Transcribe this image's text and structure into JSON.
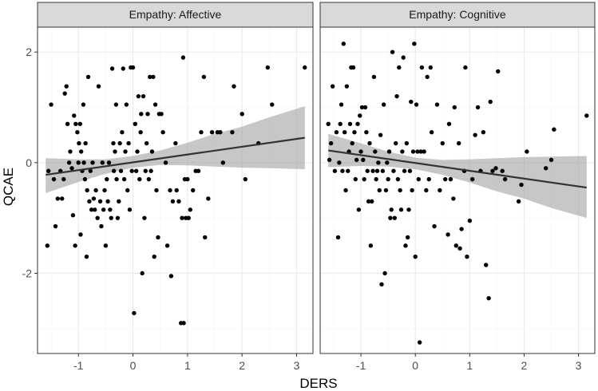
{
  "chart_data": {
    "type": "scatter",
    "xlabel": "DERS",
    "ylabel": "QCAE",
    "xlim": [
      -1.75,
      3.3
    ],
    "ylim": [
      -3.45,
      2.45
    ],
    "x_ticks": [
      -1,
      0,
      1,
      2,
      3
    ],
    "y_ticks": [
      -2,
      0,
      2
    ],
    "x_tick_labels": [
      "-1",
      "0",
      "1",
      "2",
      "3"
    ],
    "y_tick_labels": [
      "-2",
      "0",
      "2"
    ],
    "colors": {
      "point": "#000000",
      "fit_line": "#333333",
      "confidence_band": "#999999",
      "strip": "#d9d9d9",
      "grid": "#ebebeb"
    },
    "panels": [
      {
        "title": "Empathy: Affective",
        "fit": {
          "x": [
            -1.6,
            3.15
          ],
          "y": [
            -0.22,
            0.45
          ]
        },
        "band": [
          {
            "x": -1.6,
            "lo": -0.55,
            "hi": 0.08
          },
          {
            "x": -1.0,
            "lo": -0.35,
            "hi": 0.06
          },
          {
            "x": -0.5,
            "lo": -0.2,
            "hi": 0.06
          },
          {
            "x": 0.0,
            "lo": -0.09,
            "hi": 0.12
          },
          {
            "x": 0.5,
            "lo": -0.04,
            "hi": 0.22
          },
          {
            "x": 1.0,
            "lo": -0.05,
            "hi": 0.36
          },
          {
            "x": 1.5,
            "lo": -0.07,
            "hi": 0.52
          },
          {
            "x": 2.0,
            "lo": -0.09,
            "hi": 0.65
          },
          {
            "x": 2.5,
            "lo": -0.1,
            "hi": 0.82
          },
          {
            "x": 3.15,
            "lo": -0.12,
            "hi": 1.02
          }
        ],
        "points": [
          [
            -1.57,
            -1.5
          ],
          [
            -1.55,
            -0.15
          ],
          [
            -1.5,
            1.05
          ],
          [
            -1.45,
            -0.3
          ],
          [
            -1.42,
            -1.15
          ],
          [
            -1.38,
            -0.65
          ],
          [
            -1.33,
            -0.15
          ],
          [
            -1.3,
            -0.65
          ],
          [
            -1.27,
            -0.3
          ],
          [
            -1.25,
            1.25
          ],
          [
            -1.22,
            1.38
          ],
          [
            -1.2,
            0.7
          ],
          [
            -1.17,
            0.0
          ],
          [
            -1.15,
            0.2
          ],
          [
            -1.12,
            -0.1
          ],
          [
            -1.1,
            -0.95
          ],
          [
            -1.08,
            0.85
          ],
          [
            -1.06,
            -1.5
          ],
          [
            -1.05,
            0.7
          ],
          [
            -1.02,
            0.55
          ],
          [
            -1.0,
            0.0
          ],
          [
            -0.99,
            0.35
          ],
          [
            -0.97,
            0.7
          ],
          [
            -0.96,
            -1.3
          ],
          [
            -0.95,
            0.2
          ],
          [
            -0.93,
            -0.15
          ],
          [
            -0.91,
            1.05
          ],
          [
            -0.9,
            0.0
          ],
          [
            -0.88,
            -0.3
          ],
          [
            -0.87,
            0.35
          ],
          [
            -0.85,
            -1.7
          ],
          [
            -0.84,
            -0.5
          ],
          [
            -0.82,
            1.55
          ],
          [
            -0.8,
            -0.7
          ],
          [
            -0.78,
            -0.15
          ],
          [
            -0.76,
            -0.85
          ],
          [
            -0.74,
            0.0
          ],
          [
            -0.72,
            -0.65
          ],
          [
            -0.7,
            -0.85
          ],
          [
            -0.68,
            -0.5
          ],
          [
            -0.65,
            -1.0
          ],
          [
            -0.63,
            1.38
          ],
          [
            -0.6,
            -0.7
          ],
          [
            -0.58,
            -1.15
          ],
          [
            -0.56,
            0.0
          ],
          [
            -0.54,
            -0.85
          ],
          [
            -0.52,
            -0.5
          ],
          [
            -0.5,
            -1.5
          ],
          [
            -0.48,
            -0.3
          ],
          [
            -0.46,
            -0.7
          ],
          [
            -0.44,
            0.0
          ],
          [
            -0.42,
            -0.85
          ],
          [
            -0.4,
            -1.0
          ],
          [
            -0.38,
            1.7
          ],
          [
            -0.36,
            0.35
          ],
          [
            -0.35,
            -0.15
          ],
          [
            -0.33,
            0.2
          ],
          [
            -0.31,
            1.05
          ],
          [
            -0.3,
            -0.3
          ],
          [
            -0.28,
            -1.0
          ],
          [
            -0.26,
            -0.7
          ],
          [
            -0.24,
            0.35
          ],
          [
            -0.22,
            -0.15
          ],
          [
            -0.2,
            0.55
          ],
          [
            -0.18,
            1.7
          ],
          [
            -0.16,
            -0.3
          ],
          [
            -0.14,
            0.2
          ],
          [
            -0.12,
            1.05
          ],
          [
            -0.1,
            -0.5
          ],
          [
            -0.08,
            0.35
          ],
          [
            -0.06,
            -0.85
          ],
          [
            -0.04,
            1.72
          ],
          [
            -0.02,
            -0.15
          ],
          [
            0.0,
            1.72
          ],
          [
            0.02,
            -2.72
          ],
          [
            0.04,
            0.7
          ],
          [
            0.06,
            -0.15
          ],
          [
            0.08,
            0.2
          ],
          [
            0.1,
            1.2
          ],
          [
            0.12,
            -0.3
          ],
          [
            0.14,
            0.55
          ],
          [
            0.15,
            0.88
          ],
          [
            0.17,
            -2.0
          ],
          [
            0.19,
            1.2
          ],
          [
            0.21,
            -1.0
          ],
          [
            0.23,
            -0.15
          ],
          [
            0.25,
            0.35
          ],
          [
            0.27,
            0.88
          ],
          [
            0.29,
            -0.3
          ],
          [
            0.31,
            1.55
          ],
          [
            0.33,
            -0.15
          ],
          [
            0.35,
            0.2
          ],
          [
            0.37,
            1.55
          ],
          [
            0.39,
            -1.7
          ],
          [
            0.41,
            1.05
          ],
          [
            0.43,
            -0.5
          ],
          [
            0.46,
            -1.35
          ],
          [
            0.48,
            0.88
          ],
          [
            0.52,
            0.88
          ],
          [
            0.55,
            0.55
          ],
          [
            0.6,
            0.0
          ],
          [
            0.63,
            -1.5
          ],
          [
            0.68,
            -0.5
          ],
          [
            0.7,
            -2.05
          ],
          [
            0.73,
            -0.7
          ],
          [
            0.78,
            0.35
          ],
          [
            0.8,
            -0.5
          ],
          [
            0.84,
            -0.7
          ],
          [
            0.88,
            -2.9
          ],
          [
            0.9,
            -1.0
          ],
          [
            0.92,
            1.9
          ],
          [
            0.93,
            -2.9
          ],
          [
            0.95,
            -0.3
          ],
          [
            0.97,
            -1.0
          ],
          [
            1.0,
            -0.3
          ],
          [
            1.02,
            -1.0
          ],
          [
            1.05,
            -0.85
          ],
          [
            1.1,
            -0.5
          ],
          [
            1.15,
            -0.15
          ],
          [
            1.2,
            -0.15
          ],
          [
            1.25,
            0.55
          ],
          [
            1.3,
            1.55
          ],
          [
            1.32,
            -1.35
          ],
          [
            1.38,
            -0.65
          ],
          [
            1.45,
            0.55
          ],
          [
            1.55,
            0.55
          ],
          [
            1.6,
            0.55
          ],
          [
            1.65,
            0.0
          ],
          [
            1.82,
            0.55
          ],
          [
            1.85,
            1.38
          ],
          [
            2.0,
            0.88
          ],
          [
            2.06,
            -0.3
          ],
          [
            2.3,
            0.35
          ],
          [
            2.47,
            1.72
          ],
          [
            2.55,
            1.05
          ],
          [
            3.15,
            1.72
          ]
        ]
      },
      {
        "title": "Empathy: Cognitive",
        "fit": {
          "x": [
            -1.6,
            3.15
          ],
          "y": [
            0.22,
            -0.45
          ]
        },
        "band": [
          {
            "x": -1.6,
            "lo": -0.08,
            "hi": 0.52
          },
          {
            "x": -1.0,
            "lo": -0.06,
            "hi": 0.35
          },
          {
            "x": -0.5,
            "lo": -0.07,
            "hi": 0.2
          },
          {
            "x": 0.0,
            "lo": -0.12,
            "hi": 0.09
          },
          {
            "x": 0.5,
            "lo": -0.22,
            "hi": 0.05
          },
          {
            "x": 1.0,
            "lo": -0.36,
            "hi": 0.06
          },
          {
            "x": 1.5,
            "lo": -0.52,
            "hi": 0.08
          },
          {
            "x": 2.0,
            "lo": -0.65,
            "hi": 0.1
          },
          {
            "x": 2.5,
            "lo": -0.82,
            "hi": 0.11
          },
          {
            "x": 3.15,
            "lo": -1.0,
            "hi": 0.12
          }
        ],
        "points": [
          [
            -1.6,
            0.7
          ],
          [
            -1.58,
            0.05
          ],
          [
            -1.55,
            0.35
          ],
          [
            -1.52,
            1.38
          ],
          [
            -1.48,
            -0.15
          ],
          [
            -1.45,
            0.55
          ],
          [
            -1.42,
            -1.35
          ],
          [
            -1.4,
            0.0
          ],
          [
            -1.38,
            0.7
          ],
          [
            -1.36,
            1.05
          ],
          [
            -1.34,
            -0.15
          ],
          [
            -1.32,
            2.15
          ],
          [
            -1.3,
            0.55
          ],
          [
            -1.28,
            -0.5
          ],
          [
            -1.26,
            1.38
          ],
          [
            -1.24,
            -0.15
          ],
          [
            -1.22,
            0.2
          ],
          [
            -1.2,
            0.7
          ],
          [
            -1.18,
            1.72
          ],
          [
            -1.16,
            0.35
          ],
          [
            -1.14,
            1.72
          ],
          [
            -1.12,
            0.55
          ],
          [
            -1.1,
            -0.3
          ],
          [
            -1.08,
            0.05
          ],
          [
            -1.06,
            0.7
          ],
          [
            -1.04,
            -0.85
          ],
          [
            -1.02,
            0.85
          ],
          [
            -1.0,
            0.2
          ],
          [
            -0.98,
            1.0
          ],
          [
            -0.96,
            0.05
          ],
          [
            -0.94,
            -0.3
          ],
          [
            -0.92,
            1.0
          ],
          [
            -0.9,
            0.55
          ],
          [
            -0.88,
            -0.15
          ],
          [
            -0.86,
            -0.7
          ],
          [
            -0.84,
            0.35
          ],
          [
            -0.82,
            -1.5
          ],
          [
            -0.8,
            -0.7
          ],
          [
            -0.78,
            -0.15
          ],
          [
            -0.76,
            1.55
          ],
          [
            -0.74,
            0.2
          ],
          [
            -0.72,
            -0.3
          ],
          [
            -0.7,
            -0.15
          ],
          [
            -0.68,
            0.0
          ],
          [
            -0.66,
            -0.5
          ],
          [
            -0.64,
            0.5
          ],
          [
            -0.62,
            -2.2
          ],
          [
            -0.6,
            -0.15
          ],
          [
            -0.58,
            1.05
          ],
          [
            -0.56,
            -2.0
          ],
          [
            -0.54,
            -0.5
          ],
          [
            -0.52,
            0.0
          ],
          [
            -0.5,
            -0.3
          ],
          [
            -0.48,
            0.2
          ],
          [
            -0.46,
            -1.0
          ],
          [
            -0.44,
            -0.85
          ],
          [
            -0.42,
            2.0
          ],
          [
            -0.4,
            -0.15
          ],
          [
            -0.38,
            -1.0
          ],
          [
            -0.36,
            0.35
          ],
          [
            -0.34,
            1.2
          ],
          [
            -0.32,
            -0.3
          ],
          [
            -0.3,
            1.72
          ],
          [
            -0.28,
            -0.5
          ],
          [
            -0.26,
            -0.85
          ],
          [
            -0.24,
            0.2
          ],
          [
            -0.22,
            1.9
          ],
          [
            -0.2,
            -0.15
          ],
          [
            -0.18,
            -1.5
          ],
          [
            -0.16,
            0.35
          ],
          [
            -0.14,
            -1.35
          ],
          [
            -0.12,
            -0.85
          ],
          [
            -0.1,
            -0.15
          ],
          [
            -0.08,
            1.1
          ],
          [
            -0.06,
            -0.5
          ],
          [
            -0.04,
            0.2
          ],
          [
            -0.02,
            2.15
          ],
          [
            0.0,
            -1.7
          ],
          [
            0.02,
            1.05
          ],
          [
            0.04,
            0.2
          ],
          [
            0.06,
            -0.3
          ],
          [
            0.08,
            -3.25
          ],
          [
            0.1,
            0.2
          ],
          [
            0.12,
            1.72
          ],
          [
            0.16,
            0.2
          ],
          [
            0.2,
            -0.5
          ],
          [
            0.22,
            1.55
          ],
          [
            0.25,
            -0.3
          ],
          [
            0.28,
            1.72
          ],
          [
            0.3,
            0.55
          ],
          [
            0.35,
            -1.15
          ],
          [
            0.4,
            1.05
          ],
          [
            0.45,
            -0.5
          ],
          [
            0.5,
            0.35
          ],
          [
            0.55,
            -0.3
          ],
          [
            0.6,
            -1.3
          ],
          [
            0.62,
            0.7
          ],
          [
            0.65,
            -0.3
          ],
          [
            0.7,
            -0.65
          ],
          [
            0.72,
            1.0
          ],
          [
            0.75,
            -1.5
          ],
          [
            0.8,
            0.35
          ],
          [
            0.82,
            -1.55
          ],
          [
            0.85,
            -1.2
          ],
          [
            0.9,
            -0.15
          ],
          [
            0.92,
            1.72
          ],
          [
            0.95,
            -1.7
          ],
          [
            1.0,
            -1.05
          ],
          [
            1.05,
            -0.3
          ],
          [
            1.1,
            0.5
          ],
          [
            1.15,
            1.0
          ],
          [
            1.2,
            -0.15
          ],
          [
            1.25,
            0.55
          ],
          [
            1.3,
            -1.85
          ],
          [
            1.35,
            -2.45
          ],
          [
            1.38,
            1.1
          ],
          [
            1.42,
            -0.15
          ],
          [
            1.48,
            -0.1
          ],
          [
            1.52,
            1.65
          ],
          [
            1.6,
            -0.15
          ],
          [
            1.65,
            -0.3
          ],
          [
            1.9,
            -0.7
          ],
          [
            1.95,
            -0.4
          ],
          [
            2.05,
            0.2
          ],
          [
            2.4,
            -0.1
          ],
          [
            2.5,
            0.05
          ],
          [
            2.55,
            0.6
          ],
          [
            3.15,
            0.85
          ]
        ]
      }
    ]
  }
}
